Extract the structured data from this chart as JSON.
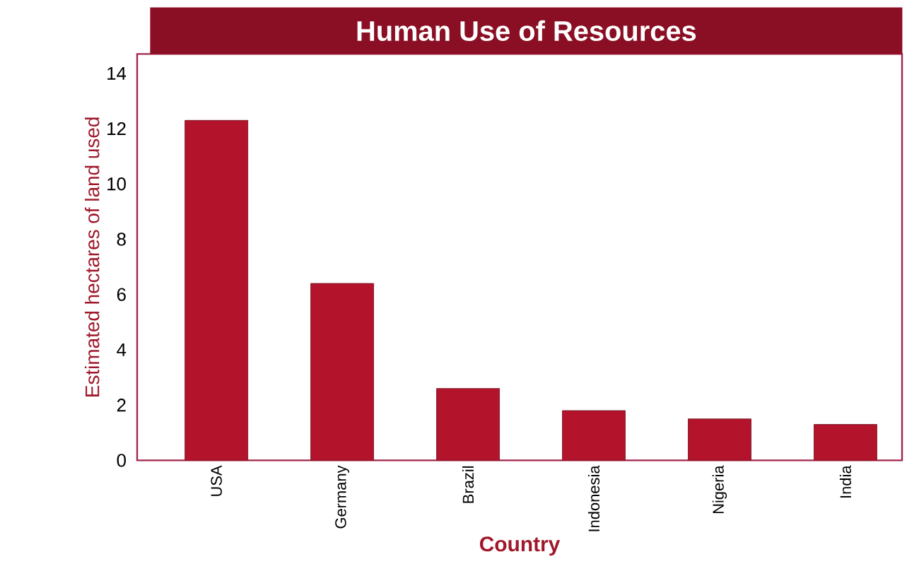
{
  "chart_data": {
    "type": "bar",
    "title": "Human Use of Resources",
    "xlabel": "Country",
    "ylabel": "Estimated hectares of land used",
    "categories": [
      "USA",
      "Germany",
      "Brazil",
      "Indonesia",
      "Nigeria",
      "India"
    ],
    "values": [
      12.3,
      6.4,
      2.6,
      1.8,
      1.5,
      1.3
    ],
    "color": "#b3142b",
    "ylim": [
      0,
      14.7
    ],
    "yticks": [
      0,
      2,
      4,
      6,
      8,
      10,
      12,
      14
    ]
  }
}
